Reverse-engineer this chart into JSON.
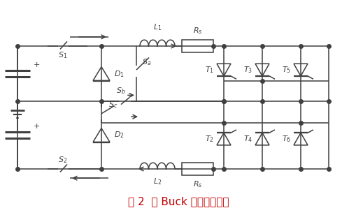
{
  "title": "图 2  双 Buck 型换流器拓扑",
  "title_color": "#c00000",
  "title_fontsize": 11,
  "bg_color": "#ffffff",
  "line_color": "#404040",
  "line_width": 1.1,
  "figsize": [
    5.09,
    3.08
  ],
  "dpi": 100
}
